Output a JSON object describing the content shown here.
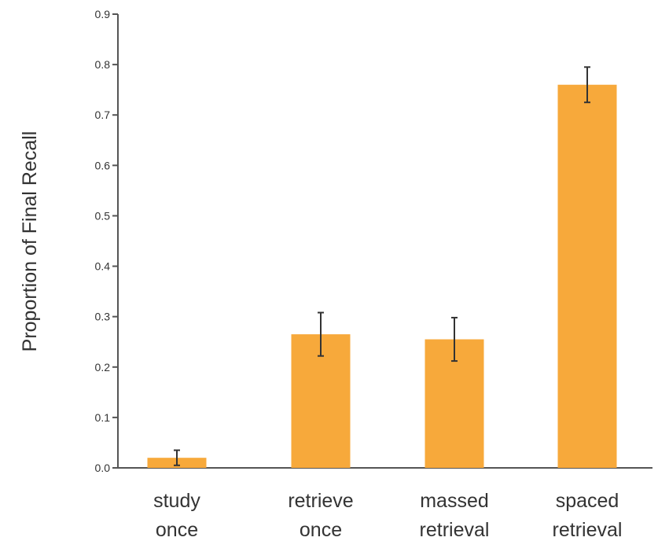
{
  "chart_data": {
    "type": "bar",
    "title": "",
    "ylabel": "Proportion of Final Recall",
    "xlabel": "",
    "ylim": [
      0,
      0.9
    ],
    "yticks": [
      "0.0",
      "0.1",
      "0.2",
      "0.3",
      "0.4",
      "0.5",
      "0.6",
      "0.7",
      "0.8",
      "0.9"
    ],
    "categories": [
      {
        "line1": "study",
        "line2": "once"
      },
      {
        "line1": "retrieve",
        "line2": "once"
      },
      {
        "line1": "massed",
        "line2": "retrieval"
      },
      {
        "line1": "spaced",
        "line2": "retrieval"
      }
    ],
    "values": [
      0.02,
      0.265,
      0.255,
      0.76
    ],
    "error": [
      0.015,
      0.043,
      0.043,
      0.035
    ],
    "grid": false,
    "legend": "none",
    "colors": {
      "bar": "#F7A93B",
      "error_bar": "#333333",
      "axis": "#555555"
    }
  }
}
